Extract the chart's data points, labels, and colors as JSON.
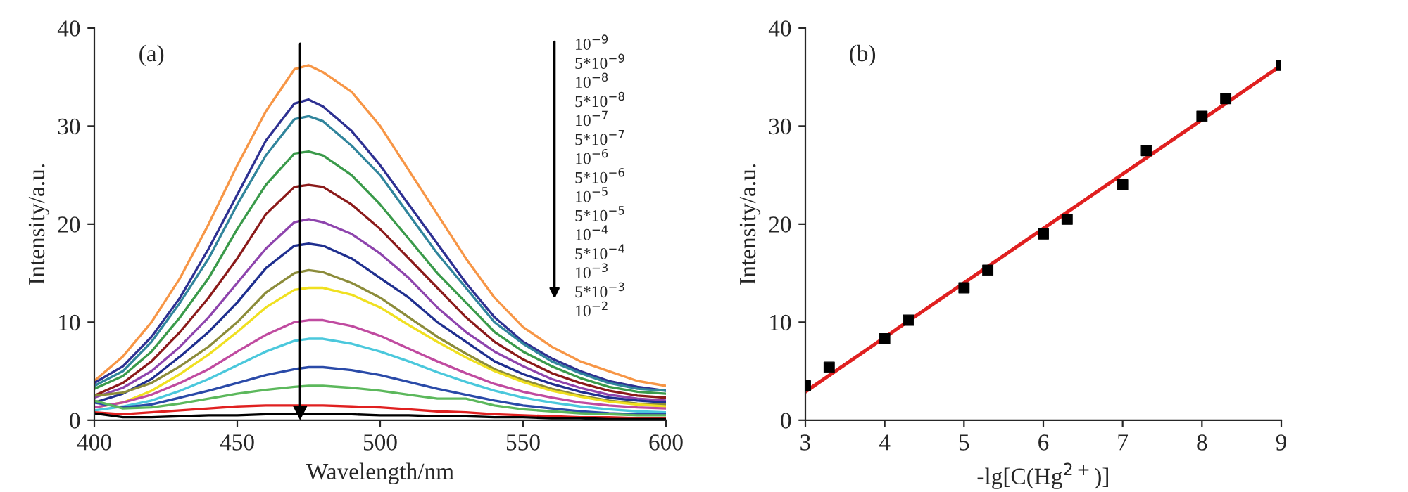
{
  "chart_data": [
    {
      "type": "line",
      "title": "(a)",
      "xlabel": "Wavelength/nm",
      "ylabel": "Intensity/a.u.",
      "x": [
        400,
        410,
        420,
        430,
        440,
        450,
        460,
        470,
        475,
        480,
        490,
        500,
        510,
        520,
        530,
        540,
        550,
        560,
        570,
        580,
        590,
        600
      ],
      "series": [
        {
          "color": "#f79646",
          "values": [
            4,
            6.5,
            10,
            14.5,
            20,
            26,
            31.5,
            35.8,
            36.2,
            35.5,
            33.5,
            30,
            25.5,
            21,
            16.5,
            12.5,
            9.5,
            7.5,
            6,
            5,
            4,
            3.5
          ]
        },
        {
          "color": "#2e3192",
          "values": [
            3.8,
            5.5,
            8.5,
            12.5,
            17.5,
            23,
            28.5,
            32.3,
            32.7,
            32,
            29.5,
            26,
            22,
            18,
            14,
            10.5,
            8,
            6.3,
            5,
            4,
            3.4,
            3.0
          ]
        },
        {
          "color": "#31859c",
          "values": [
            3.5,
            5,
            8,
            12,
            16.5,
            22,
            27,
            30.7,
            31,
            30.5,
            28,
            25,
            21,
            17,
            13.5,
            10,
            7.8,
            6,
            4.8,
            3.8,
            3.2,
            3.0
          ]
        },
        {
          "color": "#3a9a4a",
          "values": [
            3.2,
            4.5,
            7,
            10.5,
            14.5,
            19.5,
            24,
            27.2,
            27.4,
            27,
            25,
            22,
            18.5,
            15,
            12,
            9,
            7,
            5.5,
            4.3,
            3.4,
            2.9,
            2.7
          ]
        },
        {
          "color": "#8b1a1a",
          "values": [
            2.5,
            3.8,
            6,
            9,
            12.5,
            16.5,
            21,
            23.8,
            24,
            23.8,
            22,
            19.5,
            16.5,
            13.5,
            10.5,
            8,
            6.2,
            4.8,
            3.8,
            3,
            2.5,
            2.3
          ]
        },
        {
          "color": "#8e44ad",
          "values": [
            2.3,
            3.3,
            5,
            7.5,
            10.5,
            14,
            17.5,
            20.2,
            20.5,
            20.2,
            19,
            17,
            14.5,
            11.5,
            9,
            7,
            5.5,
            4.2,
            3.3,
            2.6,
            2.2,
            2.0
          ]
        },
        {
          "color": "#1f2f8f",
          "values": [
            1.8,
            2.7,
            4.2,
            6.5,
            9,
            12,
            15.5,
            17.8,
            18,
            17.8,
            16.5,
            14.5,
            12.5,
            10,
            8,
            6,
            4.7,
            3.7,
            2.9,
            2.3,
            2,
            1.8
          ]
        },
        {
          "color": "#8c8c3a",
          "values": [
            2.5,
            2.8,
            3.8,
            5.5,
            7.5,
            10,
            13,
            15,
            15.3,
            15.1,
            14,
            12.5,
            10.5,
            8.5,
            6.8,
            5.2,
            4.1,
            3.2,
            2.5,
            2,
            1.7,
            1.6
          ]
        },
        {
          "color": "#f0e020",
          "values": [
            1.3,
            1.8,
            3,
            4.7,
            6.7,
            9,
            11.5,
            13.3,
            13.5,
            13.5,
            12.8,
            11.5,
            9.7,
            8,
            6.4,
            5,
            3.9,
            3,
            2.4,
            1.9,
            1.6,
            1.4
          ]
        },
        {
          "color": "#c04ba0",
          "values": [
            1.3,
            1.8,
            2.6,
            3.8,
            5.2,
            7,
            8.7,
            10,
            10.2,
            10.2,
            9.6,
            8.6,
            7.3,
            6,
            4.8,
            3.7,
            2.9,
            2.3,
            1.8,
            1.5,
            1.3,
            1.2
          ]
        },
        {
          "color": "#4bc8dc",
          "values": [
            1,
            1.4,
            2,
            3,
            4.2,
            5.6,
            7,
            8.1,
            8.3,
            8.3,
            7.8,
            7,
            6,
            4.9,
            3.9,
            3,
            2.3,
            1.8,
            1.4,
            1.1,
            0.9,
            0.8
          ]
        },
        {
          "color": "#2a4aa8",
          "values": [
            1.8,
            1.3,
            1.6,
            2.3,
            3,
            3.8,
            4.6,
            5.2,
            5.4,
            5.4,
            5.1,
            4.6,
            3.9,
            3.2,
            2.6,
            2,
            1.5,
            1.2,
            0.9,
            0.7,
            0.6,
            0.6
          ]
        },
        {
          "color": "#5cb85c",
          "values": [
            2,
            1.2,
            1.3,
            1.7,
            2.2,
            2.7,
            3.1,
            3.4,
            3.5,
            3.5,
            3.3,
            3,
            2.6,
            2.2,
            2.2,
            1.5,
            1.1,
            0.9,
            0.7,
            0.6,
            0.5,
            0.5
          ]
        },
        {
          "color": "#e02020",
          "values": [
            0.8,
            0.6,
            0.8,
            1,
            1.2,
            1.4,
            1.5,
            1.5,
            1.5,
            1.5,
            1.4,
            1.3,
            1.1,
            0.9,
            0.8,
            0.6,
            0.5,
            0.4,
            0.3,
            0.3,
            0.2,
            0.2
          ]
        },
        {
          "color": "#000000",
          "values": [
            0.7,
            0.3,
            0.3,
            0.4,
            0.5,
            0.5,
            0.6,
            0.6,
            0.6,
            0.6,
            0.6,
            0.5,
            0.5,
            0.4,
            0.4,
            0.3,
            0.3,
            0.2,
            0.2,
            0.1,
            0.1,
            0.1
          ]
        }
      ],
      "ref_lines": [
        {
          "axis": "x",
          "value": 472,
          "color": "#000000"
        }
      ],
      "xlim": [
        400,
        600
      ],
      "ylim": [
        0,
        40
      ],
      "xticks": [
        400,
        450,
        500,
        550,
        600
      ],
      "yticks": [
        0,
        10,
        20,
        30,
        40
      ],
      "annotations": [
        "10$^{−9}$",
        "5*10$^{−9}$",
        "10$^{−8}$",
        "5*10$^{−8}$",
        "10$^{−7}$",
        "5*10$^{−7}$",
        "10$^{−6}$",
        "5*10$^{−6}$",
        "10$^{−5}$",
        "5*10$^{−5}$",
        "10$^{−4}$",
        "5*10$^{−4}$",
        "10$^{−3}$",
        "5*10$^{−3}$",
        "10$^{−2}$"
      ]
    },
    {
      "type": "scatter",
      "title": "(b)",
      "xlabel": "-lg[C(Hg$^{2+}$)]",
      "ylabel": "Intensity/a.u.",
      "series": [
        {
          "type": "scatter",
          "color": "#000000",
          "marker": "square",
          "x": [
            3,
            3.3,
            4,
            4.3,
            5,
            5.3,
            6,
            6.3,
            7,
            7.3,
            8,
            8.3,
            9
          ],
          "values": [
            3.5,
            5.4,
            8.3,
            10.2,
            13.5,
            15.3,
            19,
            20.5,
            24,
            27.5,
            31,
            32.8,
            36.2
          ]
        },
        {
          "type": "line",
          "color": "#e02020",
          "x": [
            3,
            9
          ],
          "values": [
            2.9,
            36.2
          ]
        }
      ],
      "xlim": [
        3,
        9
      ],
      "ylim": [
        0,
        40
      ],
      "xticks": [
        3,
        4,
        5,
        6,
        7,
        8,
        9
      ],
      "yticks": [
        0,
        10,
        20,
        30,
        40
      ]
    }
  ]
}
